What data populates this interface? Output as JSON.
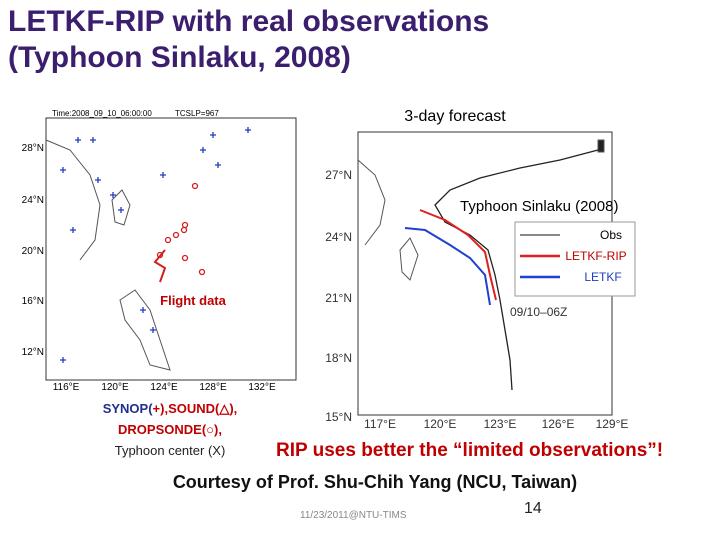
{
  "header": {
    "title": [
      "LETKF-RIP with real observations",
      "(Typhoon Sinlaku, 2008)"
    ]
  },
  "left_map": {
    "time_label": "Time:2008_09_10_06:00:00",
    "slp_label": "TCSLP=967",
    "lat_labels": [
      "28°N",
      "24°N",
      "20°N",
      "16°N",
      "12°N"
    ],
    "lon_labels": [
      "116°E",
      "120°E",
      "124°E",
      "128°E",
      "132°E"
    ],
    "annotation": "Flight data"
  },
  "obs_legend": {
    "lines": [
      [
        "SYNOP(",
        "+",
        "),SOUND(",
        "△",
        "),"
      ],
      [
        "DROPSONDE(",
        "○",
        "),"
      ],
      [
        "Typhoon center (X)"
      ]
    ]
  },
  "right_map": {
    "title": "3-day forecast",
    "subtitle": "Typhoon Sinlaku (2008)",
    "lat_labels": [
      "27°N",
      "24°N",
      "21°N",
      "18°N",
      "15°N"
    ],
    "lon_labels": [
      "117°E",
      "120°E",
      "123°E",
      "126°E",
      "129°E"
    ],
    "legend": [
      "Obs",
      "LETKF-RIP",
      "LETKF"
    ],
    "annotation": "09/10–06Z"
  },
  "conclusion": "RIP uses better the “limited observations”!",
  "credit": "Courtesy of Prof. Shu-Chih Yang (NCU, Taiwan)",
  "footer": {
    "date": "11/23/2011@NTU-TIMS",
    "page": "14"
  }
}
